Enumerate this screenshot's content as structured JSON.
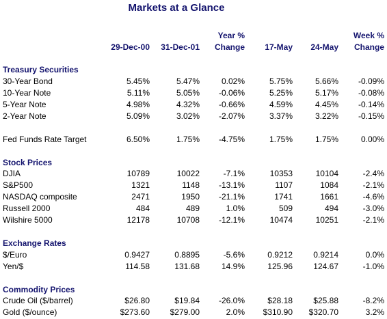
{
  "title": "Markets at a Glance",
  "columns": [
    [
      "29-Dec-00"
    ],
    [
      "31-Dec-01"
    ],
    [
      "Year %",
      "Change"
    ],
    [
      "17-May"
    ],
    [
      "24-May"
    ],
    [
      "Week %",
      "Change"
    ]
  ],
  "sections": [
    {
      "title": "Treasury Securities",
      "rows": [
        {
          "label": "30-Year Bond",
          "values": [
            "5.45%",
            "5.47%",
            "0.02%",
            "5.75%",
            "5.66%",
            "-0.09%"
          ]
        },
        {
          "label": "10-Year Note",
          "values": [
            "5.11%",
            "5.05%",
            "-0.06%",
            "5.25%",
            "5.17%",
            "-0.08%"
          ]
        },
        {
          "label": "5-Year Note",
          "values": [
            "4.98%",
            "4.32%",
            "-0.66%",
            "4.59%",
            "4.45%",
            "-0.14%"
          ]
        },
        {
          "label": "2-Year Note",
          "values": [
            "5.09%",
            "3.02%",
            "-2.07%",
            "3.37%",
            "3.22%",
            "-0.15%"
          ]
        }
      ]
    },
    {
      "rows": [
        {
          "label": "Fed Funds Rate Target",
          "values": [
            "6.50%",
            "1.75%",
            "-4.75%",
            "1.75%",
            "1.75%",
            "0.00%"
          ]
        }
      ]
    },
    {
      "title": "Stock Prices",
      "rows": [
        {
          "label": "DJIA",
          "values": [
            "10789",
            "10022",
            "-7.1%",
            "10353",
            "10104",
            "-2.4%"
          ]
        },
        {
          "label": "S&P500",
          "values": [
            "1321",
            "1148",
            "-13.1%",
            "1107",
            "1084",
            "-2.1%"
          ]
        },
        {
          "label": "NASDAQ composite",
          "values": [
            "2471",
            "1950",
            "-21.1%",
            "1741",
            "1661",
            "-4.6%"
          ]
        },
        {
          "label": "Russell 2000",
          "values": [
            "484",
            "489",
            "1.0%",
            "509",
            "494",
            "-3.0%"
          ]
        },
        {
          "label": "Wilshire 5000",
          "values": [
            "12178",
            "10708",
            "-12.1%",
            "10474",
            "10251",
            "-2.1%"
          ]
        }
      ]
    },
    {
      "title": "Exchange Rates",
      "rows": [
        {
          "label": "$/Euro",
          "values": [
            "0.9427",
            "0.8895",
            "-5.6%",
            "0.9212",
            "0.9214",
            "0.0%"
          ]
        },
        {
          "label": "Yen/$",
          "values": [
            "114.58",
            "131.68",
            "14.9%",
            "125.96",
            "124.67",
            "-1.0%"
          ]
        }
      ]
    },
    {
      "title": "Commodity Prices",
      "rows": [
        {
          "label": "Crude Oil ($/barrel)",
          "values": [
            "$26.80",
            "$19.84",
            "-26.0%",
            "$28.18",
            "$25.88",
            "-8.2%"
          ]
        },
        {
          "label": "Gold ($/ounce)",
          "values": [
            "$273.60",
            "$279.00",
            "2.0%",
            "$310.90",
            "$320.70",
            "3.2%"
          ]
        }
      ]
    }
  ]
}
